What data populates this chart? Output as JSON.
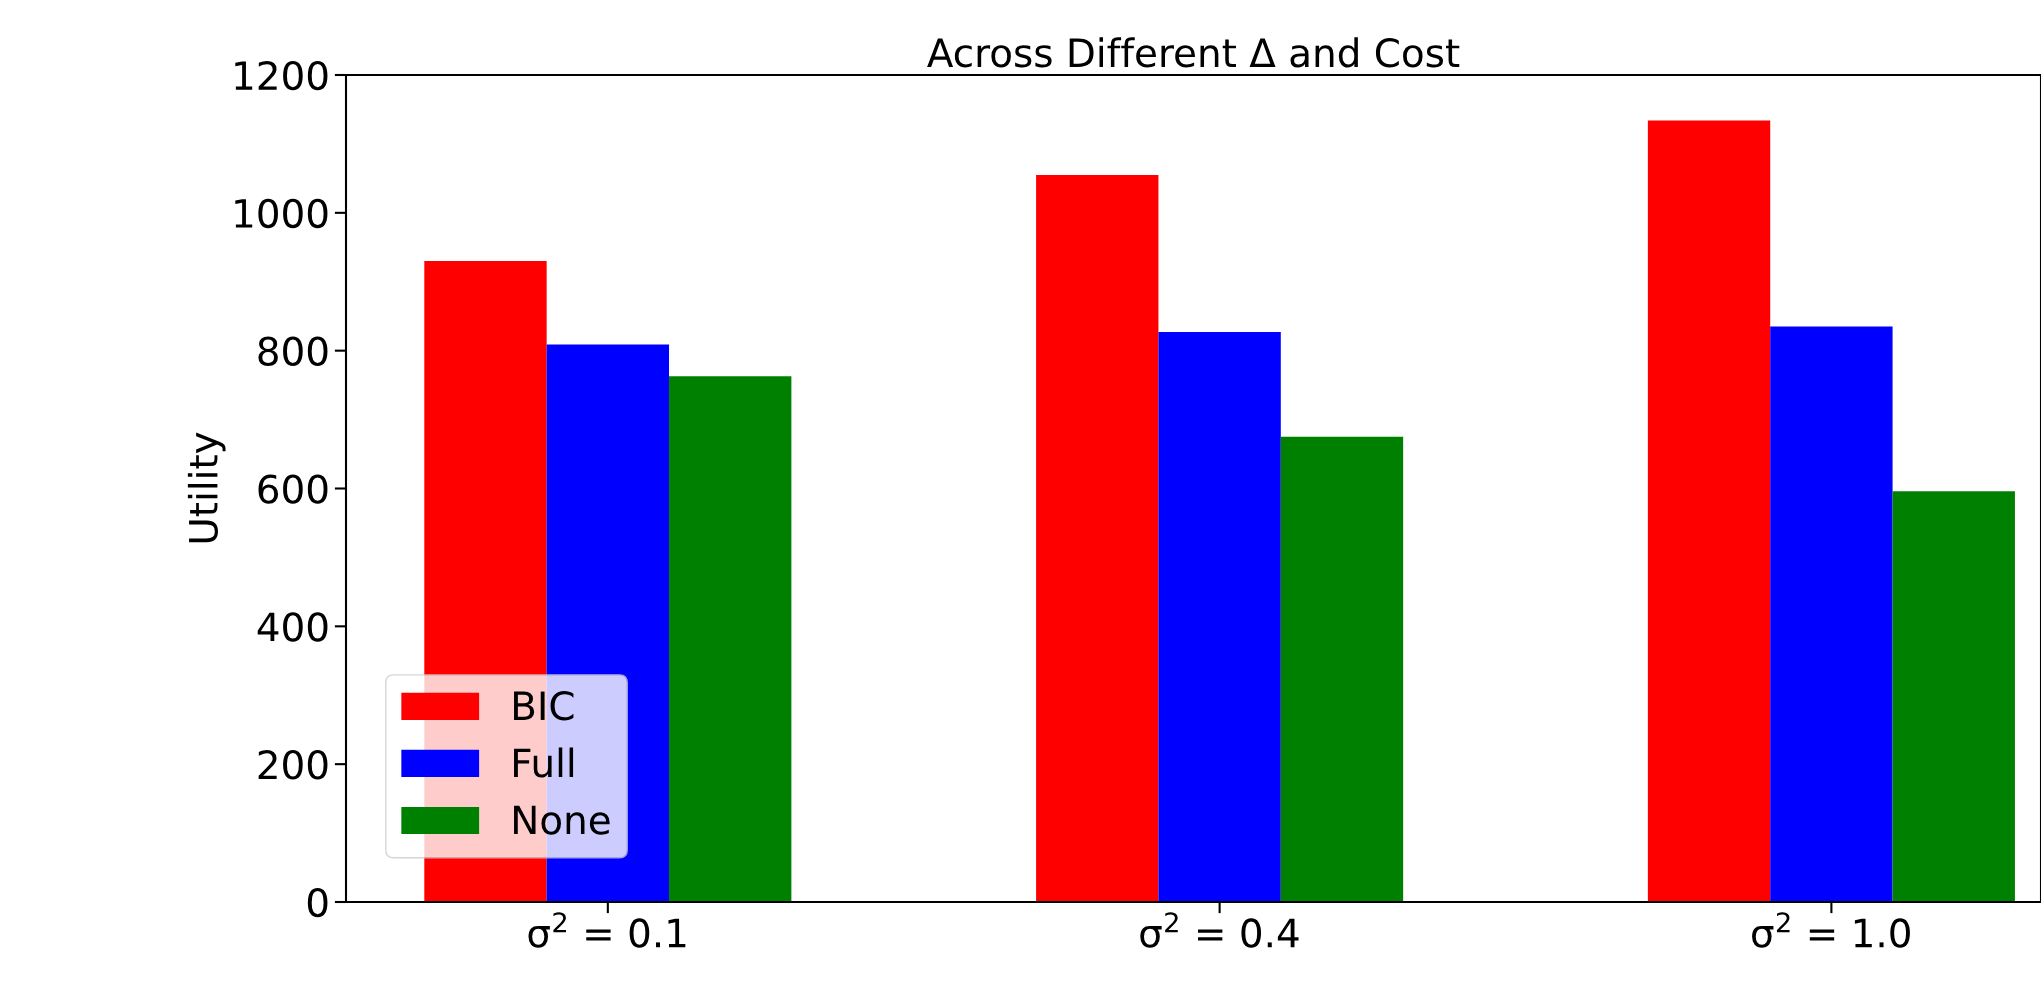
{
  "chart_data": {
    "type": "bar",
    "title": "Across Different Δ and Cost",
    "ylabel": "Utility",
    "categories": [
      "σ$^{2}$ = 0.1",
      "σ$^{2}$ = 0.4",
      "σ$^{2}$ = 1.0"
    ],
    "series": [
      {
        "name": "BIC",
        "color": "#ff0000",
        "values": [
          930,
          1055,
          1134
        ]
      },
      {
        "name": "Full",
        "color": "#0000ff",
        "values": [
          809,
          827,
          835
        ]
      },
      {
        "name": "None",
        "color": "#008000",
        "values": [
          763,
          675,
          596
        ]
      }
    ],
    "ylim": [
      0,
      1200
    ],
    "yticks": [
      0,
      200,
      400,
      600,
      800,
      1000,
      1200
    ],
    "legend": "lower left",
    "grid": false
  }
}
